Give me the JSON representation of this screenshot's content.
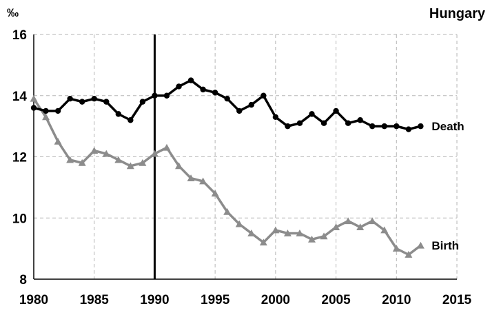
{
  "chart_data": {
    "type": "line",
    "title": "Hungary",
    "ylabel": "‰",
    "xlabel": "",
    "xlim": [
      1980,
      2015
    ],
    "ylim": [
      8,
      16
    ],
    "x_ticks": [
      "1980",
      "1985",
      "1990",
      "1995",
      "2000",
      "2005",
      "2010",
      "2015"
    ],
    "y_ticks": [
      "8",
      "10",
      "12",
      "14",
      "16"
    ],
    "grid": true,
    "vertical_marker_x": 1990,
    "x": [
      1980,
      1981,
      1982,
      1983,
      1984,
      1985,
      1986,
      1987,
      1988,
      1989,
      1990,
      1991,
      1992,
      1993,
      1994,
      1995,
      1996,
      1997,
      1998,
      1999,
      2000,
      2001,
      2002,
      2003,
      2004,
      2005,
      2006,
      2007,
      2008,
      2009,
      2010,
      2011,
      2012
    ],
    "series": [
      {
        "name": "Death",
        "color": "#000000",
        "marker": "circle",
        "values": [
          13.6,
          13.5,
          13.5,
          13.9,
          13.8,
          13.9,
          13.8,
          13.4,
          13.2,
          13.8,
          14.0,
          14.0,
          14.3,
          14.5,
          14.2,
          14.1,
          13.9,
          13.5,
          13.7,
          14.0,
          13.3,
          13.0,
          13.1,
          13.4,
          13.1,
          13.5,
          13.1,
          13.2,
          13.0,
          13.0,
          13.0,
          12.9,
          13.0
        ]
      },
      {
        "name": "Birth",
        "color": "#8c8c8c",
        "marker": "triangle",
        "values": [
          13.9,
          13.3,
          12.5,
          11.9,
          11.8,
          12.2,
          12.1,
          11.9,
          11.7,
          11.8,
          12.1,
          12.3,
          11.7,
          11.3,
          11.2,
          10.8,
          10.2,
          9.8,
          9.5,
          9.2,
          9.6,
          9.5,
          9.5,
          9.3,
          9.4,
          9.7,
          9.9,
          9.7,
          9.9,
          9.6,
          9.0,
          8.8,
          9.1
        ]
      }
    ]
  }
}
